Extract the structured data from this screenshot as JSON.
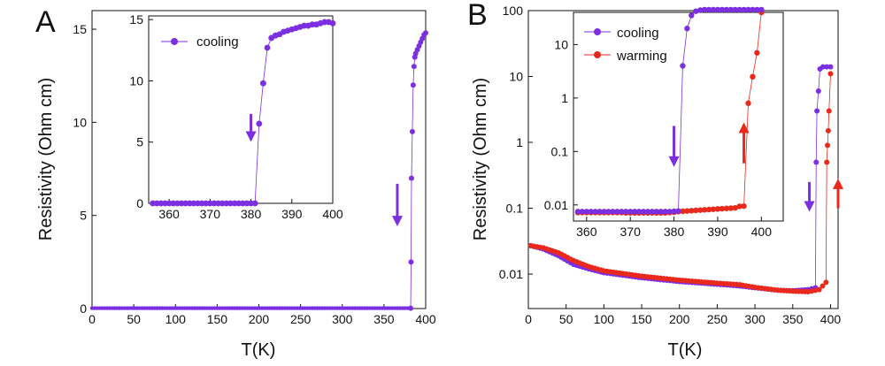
{
  "chart_data": [
    {
      "panel": "A",
      "type": "scatter",
      "ylabel": "Resistivity (Ohm cm)",
      "xlabel": "T(K)",
      "xlim": [
        0,
        400
      ],
      "ylim": [
        0,
        16
      ],
      "xticks": [
        "0",
        "50",
        "100",
        "150",
        "200",
        "250",
        "300",
        "350",
        "400"
      ],
      "yticks": [
        "0",
        "5",
        "10",
        "15"
      ],
      "series": [
        {
          "name": "cooling",
          "color": "#7b2fe0",
          "x": [
            382,
            382.5,
            383,
            384,
            385,
            386,
            387,
            388,
            390,
            392,
            394,
            396,
            398,
            400
          ],
          "y": [
            0.02,
            2.5,
            7,
            9.5,
            12,
            13,
            13.5,
            13.7,
            13.9,
            14.1,
            14.3,
            14.5,
            14.7,
            14.8
          ],
          "baseline": {
            "from": 0,
            "to": 381,
            "y": 0.02
          }
        }
      ],
      "arrow": {
        "x": 366,
        "y_from": 6.7,
        "y_to": 4.6,
        "color": "#7b2fe0"
      },
      "inset": {
        "xlim": [
          355,
          400
        ],
        "ylim": [
          0,
          15.3
        ],
        "xticks": [
          "360",
          "370",
          "380",
          "390",
          "400"
        ],
        "yticks": [
          "0",
          "5",
          "10",
          "15"
        ],
        "legend": [
          "cooling"
        ],
        "x": [
          356,
          357,
          358,
          359,
          360,
          361,
          362,
          363,
          364,
          365,
          366,
          367,
          368,
          369,
          370,
          371,
          372,
          373,
          374,
          375,
          376,
          377,
          378,
          379,
          380,
          381,
          382,
          383,
          384,
          385,
          386,
          387,
          388,
          389,
          390,
          391,
          392,
          393,
          394,
          395,
          396,
          397,
          398,
          399,
          400
        ],
        "y": [
          0,
          0,
          0,
          0,
          0,
          0,
          0,
          0,
          0,
          0,
          0,
          0,
          0,
          0,
          0,
          0,
          0,
          0,
          0,
          0,
          0,
          0,
          0,
          0,
          0,
          0,
          6.5,
          9.8,
          12.7,
          13.5,
          13.7,
          13.8,
          14.0,
          14.1,
          14.2,
          14.3,
          14.4,
          14.5,
          14.5,
          14.6,
          14.6,
          14.7,
          14.8,
          14.8,
          14.7
        ],
        "arrow": {
          "x": 380,
          "y_from": 7.3,
          "y_to": 5.3,
          "color": "#7b2fe0"
        }
      }
    },
    {
      "panel": "B",
      "type": "scatter",
      "ylabel": "Resistivity (Ohm cm)",
      "xlabel": "T(K)",
      "yscale": "log",
      "xlim": [
        0,
        410
      ],
      "ylim": [
        0.003,
        100
      ],
      "xticks": [
        "0",
        "50",
        "100",
        "150",
        "200",
        "250",
        "300",
        "350",
        "400"
      ],
      "yticks": [
        "0.01",
        "0.1",
        "1",
        "10",
        "100"
      ],
      "series": [
        {
          "name": "cooling",
          "color": "#7b2fe0",
          "x": [
            3,
            20,
            40,
            60,
            80,
            100,
            150,
            200,
            250,
            280,
            300,
            330,
            350,
            370,
            380,
            381,
            382,
            384,
            386,
            390,
            395,
            400
          ],
          "y": [
            0.027,
            0.024,
            0.019,
            0.014,
            0.012,
            0.0105,
            0.0088,
            0.0077,
            0.007,
            0.0066,
            0.0062,
            0.0057,
            0.0056,
            0.0058,
            0.0062,
            0.5,
            3.0,
            6.0,
            13.0,
            14.0,
            14.0,
            14.0
          ]
        },
        {
          "name": "warming",
          "color": "#e8291c",
          "x": [
            3,
            20,
            40,
            60,
            80,
            100,
            150,
            200,
            250,
            280,
            300,
            330,
            350,
            370,
            385,
            394,
            395,
            396,
            397,
            398,
            400
          ],
          "y": [
            0.027,
            0.025,
            0.021,
            0.016,
            0.013,
            0.0112,
            0.0093,
            0.0081,
            0.0073,
            0.0069,
            0.0063,
            0.0057,
            0.0055,
            0.0054,
            0.0058,
            0.0075,
            0.5,
            0.9,
            1.5,
            3.0,
            11.0
          ]
        }
      ],
      "arrows": [
        {
          "x": 372,
          "y_from": 0.25,
          "y_to": 0.1,
          "color": "#7b2fe0"
        },
        {
          "x": 410,
          "y_from": 0.1,
          "y_to": 0.25,
          "color": "#e8291c"
        }
      ],
      "inset": {
        "yscale": "log",
        "xlim": [
          357,
          405
        ],
        "ylim": [
          0.005,
          40
        ],
        "xticks": [
          "360",
          "370",
          "380",
          "390",
          "400"
        ],
        "yticks": [
          "0.01",
          "0.1",
          "1",
          "10"
        ],
        "legend": [
          "cooling",
          "warming"
        ],
        "cooling": {
          "x": [
            358,
            359,
            360,
            361,
            362,
            363,
            364,
            365,
            366,
            367,
            368,
            369,
            370,
            371,
            372,
            373,
            374,
            375,
            376,
            377,
            378,
            379,
            380,
            381,
            382,
            383,
            384,
            385,
            386,
            387,
            388,
            389,
            390,
            391,
            392,
            393,
            394,
            395,
            396,
            397,
            398,
            399,
            400
          ],
          "y": [
            0.0075,
            0.0075,
            0.0075,
            0.0075,
            0.0075,
            0.0075,
            0.0075,
            0.0075,
            0.0075,
            0.0075,
            0.0075,
            0.0075,
            0.0075,
            0.0075,
            0.0075,
            0.0075,
            0.0075,
            0.0075,
            0.0075,
            0.0075,
            0.0075,
            0.0075,
            0.0076,
            0.0077,
            4.0,
            20.0,
            35.0,
            42.0,
            44.0,
            45.0,
            45.0,
            45.0,
            45.0,
            45.0,
            45.0,
            45.0,
            45.0,
            45.0,
            45.0,
            45.0,
            45.0,
            45.0,
            45.0
          ]
        },
        "warming": {
          "x": [
            358,
            359,
            360,
            361,
            362,
            363,
            364,
            365,
            366,
            367,
            368,
            369,
            370,
            371,
            372,
            373,
            374,
            375,
            376,
            377,
            378,
            379,
            380,
            381,
            382,
            383,
            384,
            385,
            386,
            387,
            388,
            389,
            390,
            391,
            392,
            393,
            394,
            395,
            396,
            397,
            398,
            399,
            400
          ],
          "y": [
            0.0072,
            0.0072,
            0.0072,
            0.0072,
            0.0072,
            0.0072,
            0.0072,
            0.0072,
            0.0072,
            0.0072,
            0.0072,
            0.0071,
            0.0071,
            0.0071,
            0.0071,
            0.0071,
            0.0071,
            0.0071,
            0.0071,
            0.0071,
            0.0071,
            0.0072,
            0.0073,
            0.0075,
            0.0076,
            0.0077,
            0.0078,
            0.0079,
            0.008,
            0.0081,
            0.0082,
            0.0083,
            0.0084,
            0.0085,
            0.0086,
            0.0087,
            0.0088,
            0.0094,
            0.0095,
            0.8,
            2.5,
            7.0,
            40.0
          ]
        },
        "arrows": [
          {
            "x": 380,
            "y_from": 0.3,
            "y_to": 0.06,
            "color": "#7b2fe0"
          },
          {
            "x": 396,
            "y_from": 0.06,
            "y_to": 0.3,
            "color": "#e8291c"
          }
        ]
      }
    }
  ]
}
